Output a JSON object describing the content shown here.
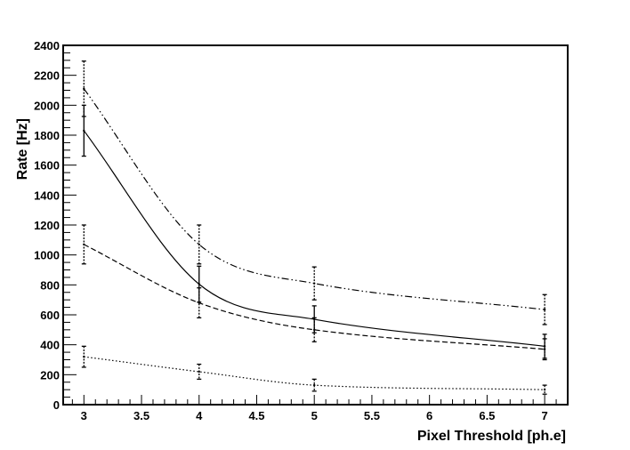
{
  "chart_data": {
    "type": "line",
    "xlabel": "Pixel Threshold [ph.e]",
    "ylabel": "Rate [Hz]",
    "xlim": [
      2.82,
      7.2
    ],
    "ylim": [
      0,
      2400
    ],
    "x_ticks": [
      3,
      3.5,
      4,
      4.5,
      5,
      5.5,
      6,
      6.5,
      7
    ],
    "x_tick_labels": [
      "3",
      "3.5",
      "4",
      "4.5",
      "5",
      "5.5",
      "6",
      "6.5",
      "7"
    ],
    "y_ticks": [
      0,
      200,
      400,
      600,
      800,
      1000,
      1200,
      1400,
      1600,
      1800,
      2000,
      2200,
      2400
    ],
    "y_tick_labels": [
      "0",
      "200",
      "400",
      "600",
      "800",
      "1000",
      "1200",
      "1400",
      "1600",
      "1800",
      "2000",
      "2200",
      "2400"
    ],
    "grid": false,
    "series": [
      {
        "style": "dash-dot-dot",
        "x": [
          3,
          4,
          5,
          7
        ],
        "values": [
          2110,
          1070,
          810,
          635
        ],
        "errors": [
          185,
          130,
          110,
          100
        ]
      },
      {
        "style": "solid",
        "x": [
          3,
          4,
          5,
          7
        ],
        "values": [
          1830,
          805,
          570,
          390
        ],
        "errors": [
          170,
          120,
          90,
          80
        ]
      },
      {
        "style": "dashed",
        "x": [
          3,
          4,
          5,
          7
        ],
        "values": [
          1070,
          680,
          500,
          370
        ],
        "errors": [
          130,
          100,
          80,
          70
        ]
      },
      {
        "style": "dotted",
        "x": [
          3,
          4,
          5,
          7
        ],
        "values": [
          320,
          220,
          130,
          100
        ],
        "errors": [
          70,
          50,
          40,
          30
        ]
      }
    ]
  }
}
